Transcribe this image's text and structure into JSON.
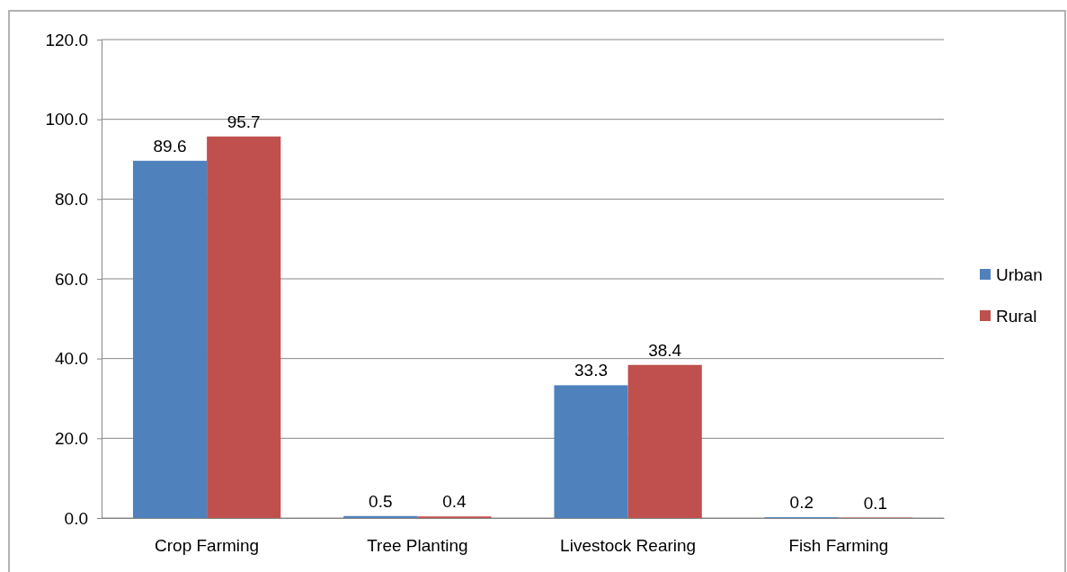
{
  "chart_data": {
    "type": "bar",
    "categories": [
      "Crop Farming",
      "Tree Planting",
      "Livestock Rearing",
      "Fish Farming"
    ],
    "series": [
      {
        "name": "Urban",
        "color": "#4f81bd",
        "values": [
          89.6,
          0.5,
          33.3,
          0.2
        ]
      },
      {
        "name": "Rural",
        "color": "#c0504d",
        "values": [
          95.7,
          0.4,
          38.4,
          0.1
        ]
      }
    ],
    "ylim": [
      0,
      120
    ],
    "yticks": [
      {
        "value": 0,
        "label": "0.0"
      },
      {
        "value": 20,
        "label": "20.0"
      },
      {
        "value": 40,
        "label": "40.0"
      },
      {
        "value": 60,
        "label": "60.0"
      },
      {
        "value": 80,
        "label": "80.0"
      },
      {
        "value": 100,
        "label": "100.0"
      },
      {
        "value": 120,
        "label": "120.0"
      }
    ],
    "grid": "y",
    "legend": "right",
    "data_labels": true
  }
}
